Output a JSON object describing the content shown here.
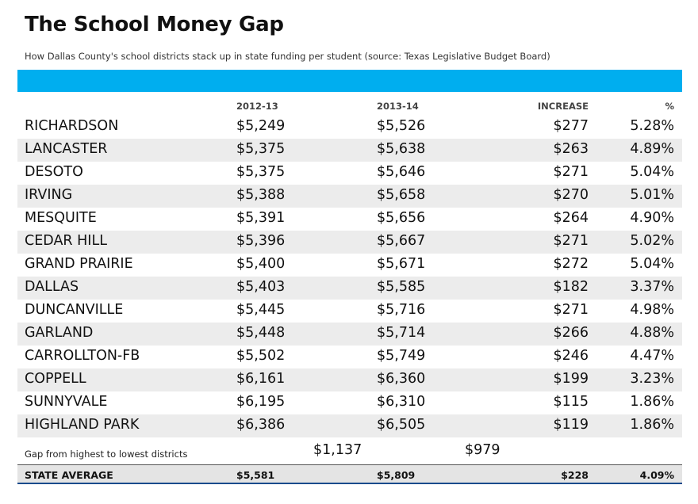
{
  "title": "The School Money Gap",
  "subtitle": "How Dallas County's school districts stack up in state funding per student (source: Texas Legislative Budget Board)",
  "colors": {
    "accent_band": "#00aeef",
    "row_shade": "#ececec",
    "average_bar": "#e4e4e4"
  },
  "chart_data": {
    "type": "table",
    "columns": [
      "",
      "2012-13",
      "2013-14",
      "INCREASE",
      "%"
    ],
    "rows": [
      [
        "RICHARDSON",
        "$5,249",
        "$5,526",
        "$277",
        "5.28%"
      ],
      [
        "LANCASTER",
        "$5,375",
        "$5,638",
        "$263",
        "4.89%"
      ],
      [
        "DESOTO",
        "$5,375",
        "$5,646",
        "$271",
        "5.04%"
      ],
      [
        "IRVING",
        "$5,388",
        "$5,658",
        "$270",
        "5.01%"
      ],
      [
        "MESQUITE",
        "$5,391",
        "$5,656",
        "$264",
        "4.90%"
      ],
      [
        "CEDAR HILL",
        "$5,396",
        "$5,667",
        "$271",
        "5.02%"
      ],
      [
        "GRAND PRAIRIE",
        "$5,400",
        "$5,671",
        "$272",
        "5.04%"
      ],
      [
        "DALLAS",
        "$5,403",
        "$5,585",
        "$182",
        "3.37%"
      ],
      [
        "DUNCANVILLE",
        "$5,445",
        "$5,716",
        "$271",
        "4.98%"
      ],
      [
        "GARLAND",
        "$5,448",
        "$5,714",
        "$266",
        "4.88%"
      ],
      [
        "CARROLLTON-FB",
        "$5,502",
        "$5,749",
        "$246",
        "4.47%"
      ],
      [
        "COPPELL",
        "$6,161",
        "$6,360",
        "$199",
        "3.23%"
      ],
      [
        "SUNNYVALE",
        "$6,195",
        "$6,310",
        "$115",
        "1.86%"
      ],
      [
        "HIGHLAND PARK",
        "$6,386",
        "$6,505",
        "$119",
        "1.86%"
      ]
    ],
    "gap": {
      "label": "Gap from highest to lowest districts",
      "value_2012_13": "$1,137",
      "value_2013_14": "$979"
    },
    "average": {
      "label": "STATE AVERAGE",
      "value_2012_13": "$5,581",
      "value_2013_14": "$5,809",
      "increase": "$228",
      "percent": "4.09%"
    }
  }
}
